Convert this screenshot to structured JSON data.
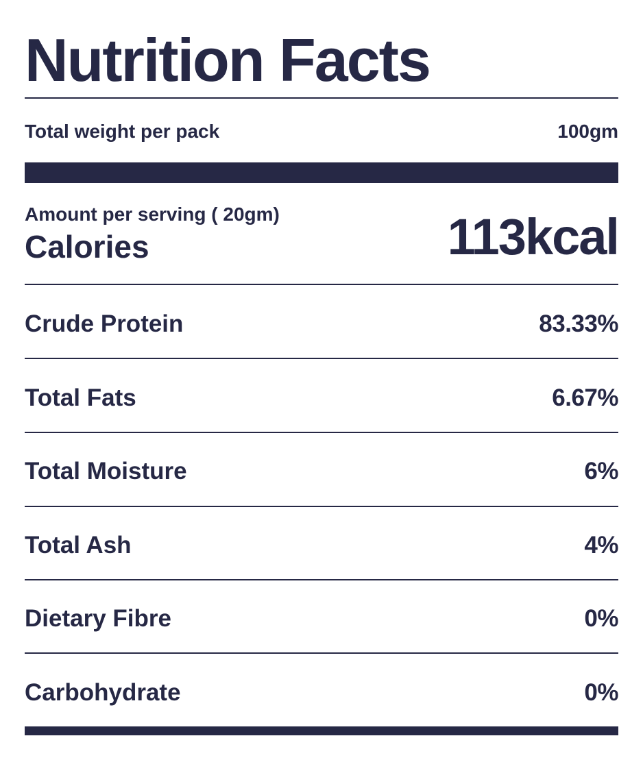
{
  "title": "Nutrition Facts",
  "total_weight": {
    "label": "Total weight per pack",
    "value": "100gm"
  },
  "serving": {
    "label": "Amount per serving ( 20gm)",
    "calories_label": "Calories",
    "calories_value": "113kcal"
  },
  "nutrients": [
    {
      "name": "Crude Protein",
      "value": "83.33%"
    },
    {
      "name": "Total Fats",
      "value": "6.67%"
    },
    {
      "name": "Total Moisture",
      "value": "6%"
    },
    {
      "name": "Total Ash",
      "value": "4%"
    },
    {
      "name": "Dietary Fibre",
      "value": "0%"
    },
    {
      "name": "Carbohydrate",
      "value": "0%"
    }
  ],
  "colors": {
    "ink": "#262845",
    "background": "#ffffff"
  }
}
